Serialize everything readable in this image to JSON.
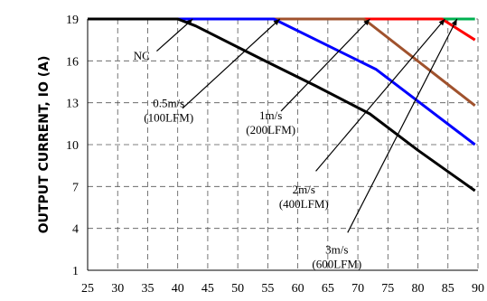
{
  "chart_data": {
    "type": "line",
    "ylabel": "OUTPUT CURRENT, IO (A)",
    "xlabel": "",
    "xlim": [
      25,
      90
    ],
    "ylim": [
      1,
      19
    ],
    "xticks": [
      25,
      30,
      35,
      40,
      45,
      50,
      55,
      60,
      65,
      70,
      75,
      80,
      85,
      90
    ],
    "yticks": [
      1,
      4,
      7,
      10,
      13,
      16,
      19
    ],
    "grid": true,
    "series": [
      {
        "color": "#00b050",
        "x": [
          25,
          89.5
        ],
        "y": [
          19,
          19
        ]
      },
      {
        "color": "#ff0000",
        "x": [
          25,
          84,
          89.5
        ],
        "y": [
          19,
          19,
          17.5
        ]
      },
      {
        "color": "#a0522d",
        "x": [
          25,
          71,
          89.5
        ],
        "y": [
          19,
          19,
          12.8
        ]
      },
      {
        "color": "#0000ff",
        "x": [
          25,
          56,
          73,
          89.5
        ],
        "y": [
          19,
          19,
          15.4,
          10
        ]
      },
      {
        "color": "#000000",
        "x": [
          25,
          40,
          43,
          55,
          63,
          72,
          80,
          89.5
        ],
        "y": [
          19,
          19,
          18.5,
          15.9,
          14.2,
          12.2,
          9.6,
          6.7
        ]
      }
    ],
    "annotations": [
      {
        "lines": [
          "NC"
        ],
        "tx": 34,
        "ty": 16.1,
        "ax": 42.5,
        "ay": 19,
        "bx": 36.5,
        "by": 16.7
      },
      {
        "lines": [
          "0.5m/s",
          "(100LFM)"
        ],
        "tx": 38.5,
        "ty": 12.7,
        "ax": 57,
        "ay": 19,
        "bx": 40.8,
        "by": 12.6
      },
      {
        "lines": [
          "1m/s",
          "(200LFM)"
        ],
        "tx": 55.5,
        "ty": 11.8,
        "ax": 72,
        "ay": 19,
        "bx": 57.2,
        "by": 12.4
      },
      {
        "lines": [
          "2m/s",
          "(400LFM)"
        ],
        "tx": 61,
        "ty": 6.5,
        "ax": 84.5,
        "ay": 19,
        "bx": 63,
        "by": 8.1
      },
      {
        "lines": [
          "3m/s",
          "(600LFM)"
        ],
        "tx": 66.5,
        "ty": 2.2,
        "ax": 86.5,
        "ay": 19,
        "bx": 68.3,
        "by": 3.7
      }
    ]
  }
}
